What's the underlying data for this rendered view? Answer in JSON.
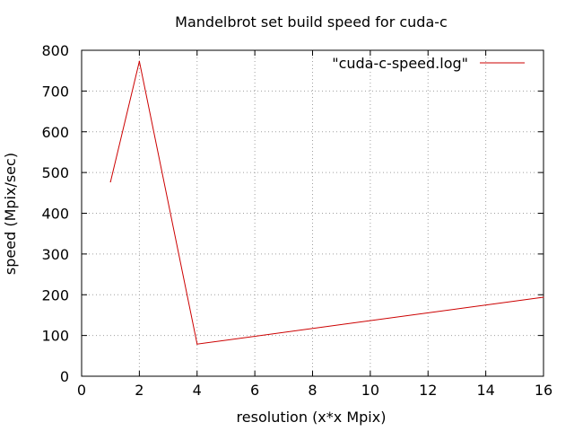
{
  "chart_data": {
    "type": "line",
    "title": "Mandelbrot set build speed for cuda-c",
    "xlabel": "resolution (x*x Mpix)",
    "ylabel": "speed (Mpix/sec)",
    "xlim": [
      0,
      16
    ],
    "ylim": [
      0,
      800
    ],
    "xticks": [
      0,
      2,
      4,
      6,
      8,
      10,
      12,
      14,
      16
    ],
    "yticks": [
      0,
      100,
      200,
      300,
      400,
      500,
      600,
      700,
      800
    ],
    "grid": true,
    "legend_position": "top-right",
    "series": [
      {
        "name": "\"cuda-c-speed.log\"",
        "color": "#cc0000",
        "x": [
          1,
          2,
          4,
          16
        ],
        "y": [
          477,
          773,
          79,
          194
        ]
      }
    ]
  }
}
